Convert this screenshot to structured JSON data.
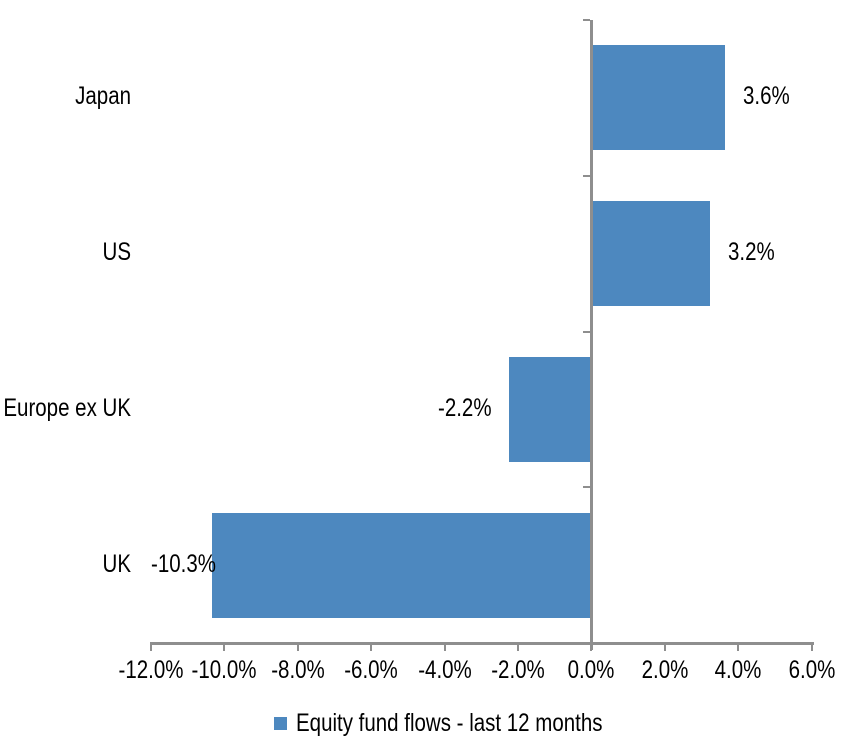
{
  "chart_data": {
    "type": "bar",
    "orientation": "horizontal",
    "title": "",
    "categories": [
      "Japan",
      "US",
      "Europe ex UK",
      "UK"
    ],
    "series": [
      {
        "name": "Equity fund flows - last 12 months",
        "values": [
          3.6,
          3.2,
          -2.2,
          -10.3
        ],
        "data_labels": [
          "3.6%",
          "3.2%",
          "-2.2%",
          "-10.3%"
        ]
      }
    ],
    "xlabel": "",
    "ylabel": "",
    "xlim": [
      -12,
      6
    ],
    "x_tick_step": 2,
    "x_tick_labels": [
      "-12.0%",
      "-10.0%",
      "-8.0%",
      "-6.0%",
      "-4.0%",
      "-2.0%",
      "0.0%",
      "2.0%",
      "4.0%",
      "6.0%"
    ],
    "grid": false,
    "legend": "Equity fund flows - last 12 months",
    "legend_position": "bottom-center",
    "bar_color": "#4D88BF",
    "axis_color": "#8E8E8E",
    "text_color": "#000000",
    "background_color": "#FFFFFF"
  }
}
